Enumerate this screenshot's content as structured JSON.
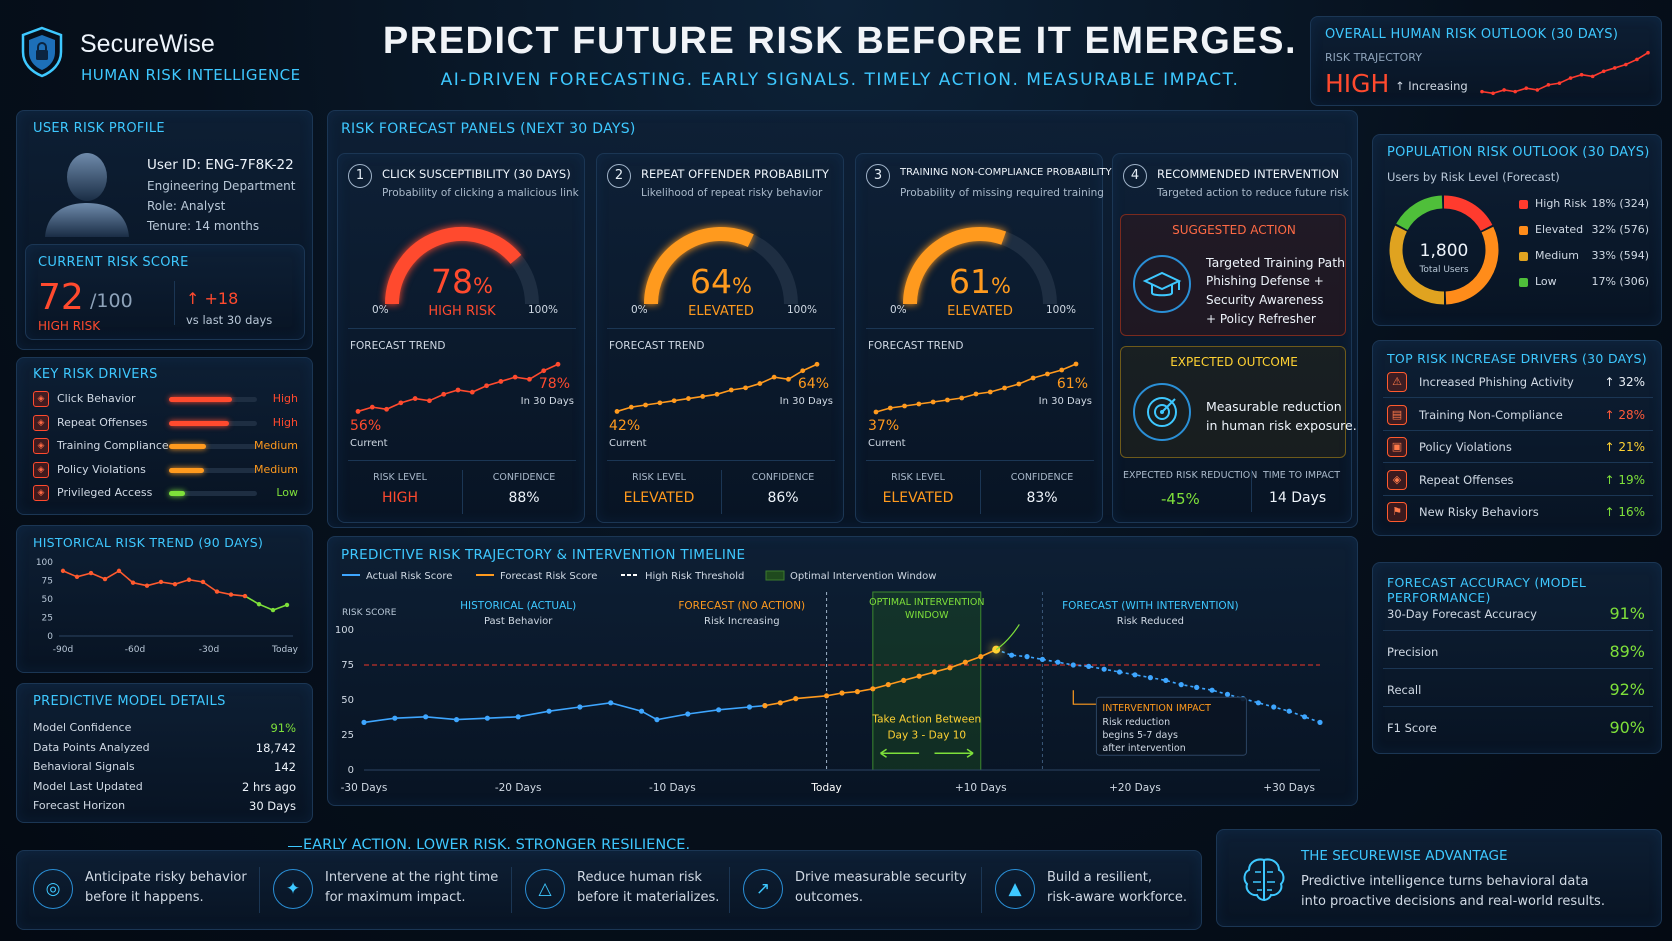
{
  "brand": {
    "name": "SecureWise",
    "tagline": "HUMAN RISK INTELLIGENCE"
  },
  "hero": {
    "headline": "PREDICT FUTURE RISK BEFORE IT EMERGES.",
    "subline": "AI-DRIVEN FORECASTING. EARLY SIGNALS. TIMELY ACTION. MEASURABLE IMPACT."
  },
  "outlook": {
    "title": "OVERALL HUMAN RISK OUTLOOK (30 DAYS)",
    "trajectory_label": "RISK TRAJECTORY",
    "level": "HIGH",
    "trend": "↑ Increasing",
    "spark": [
      12,
      11,
      13,
      12,
      14,
      13,
      16,
      17,
      20,
      22,
      21,
      24,
      26,
      28,
      31,
      35
    ]
  },
  "profile": {
    "title": "USER RISK PROFILE",
    "user_id": "User ID: ENG-7F8K-22",
    "department": "Engineering Department",
    "role": "Role: Analyst",
    "tenure": "Tenure: 14 months"
  },
  "current_score": {
    "title": "CURRENT RISK SCORE",
    "score": "72",
    "max": "/100",
    "level": "HIGH RISK",
    "delta": "↑ +18",
    "delta_note": "vs last 30 days"
  },
  "drivers": {
    "title": "KEY RISK DRIVERS",
    "items": [
      {
        "label": "Click Behavior",
        "level": "High",
        "value": 0.72,
        "color": "#ff4a2e"
      },
      {
        "label": "Repeat Offenses",
        "level": "High",
        "value": 0.68,
        "color": "#ff4a2e"
      },
      {
        "label": "Training Compliance",
        "level": "Medium",
        "value": 0.42,
        "color": "#ff9a1e"
      },
      {
        "label": "Policy Violations",
        "level": "Medium",
        "value": 0.4,
        "color": "#ff9a1e"
      },
      {
        "label": "Privileged Access",
        "level": "Low",
        "value": 0.18,
        "color": "#7ee03a"
      }
    ]
  },
  "history": {
    "title": "HISTORICAL RISK TREND (90 DAYS)",
    "yticks": [
      "100",
      "75",
      "50",
      "25",
      "0"
    ],
    "xticks": [
      "-90d",
      "-60d",
      "-30d",
      "Today"
    ],
    "values": [
      88,
      80,
      85,
      77,
      88,
      72,
      68,
      73,
      70,
      76,
      73,
      60,
      56,
      54,
      43,
      35,
      42
    ]
  },
  "model": {
    "title": "PREDICTIVE MODEL DETAILS",
    "rows": [
      {
        "label": "Model Confidence",
        "value": "91%"
      },
      {
        "label": "Data Points Analyzed",
        "value": "18,742"
      },
      {
        "label": "Behavioral Signals",
        "value": "142"
      },
      {
        "label": "Model Last Updated",
        "value": "2 hrs ago"
      },
      {
        "label": "Forecast Horizon",
        "value": "30 Days"
      }
    ]
  },
  "forecast": {
    "title": "RISK FORECAST PANELS (NEXT 30 DAYS)",
    "panels": [
      {
        "num": "1",
        "title": "CLICK SUSCEPTIBILITY (30 DAYS)",
        "sub": "Probability of clicking a malicious link",
        "pct": "78",
        "pct_sign": "%",
        "level": "HIGH RISK",
        "min": "0%",
        "max": "100%",
        "gauge": 0.78,
        "color": "#ff4a2e",
        "trend_label": "FORECAST TREND",
        "start": "56%",
        "start_note": "Current",
        "end": "78%",
        "end_note": "In 30 Days",
        "trend": [
          56,
          58,
          57,
          60,
          62,
          61,
          64,
          66,
          65,
          68,
          70,
          72,
          71,
          75,
          78
        ],
        "risk_level_label": "RISK LEVEL",
        "risk_level": "HIGH",
        "confidence_label": "CONFIDENCE",
        "confidence": "88%"
      },
      {
        "num": "2",
        "title": "REPEAT OFFENDER PROBABILITY",
        "sub": "Likelihood of repeat risky behavior",
        "pct": "64",
        "pct_sign": "%",
        "level": "ELEVATED",
        "min": "0%",
        "max": "100%",
        "gauge": 0.64,
        "color": "#ff9a1e",
        "trend_label": "FORECAST TREND",
        "start": "42%",
        "start_note": "Current",
        "end": "64%",
        "end_note": "In 30 Days",
        "trend": [
          42,
          44,
          45,
          46,
          47,
          48,
          49,
          50,
          52,
          53,
          55,
          58,
          57,
          61,
          64
        ],
        "risk_level_label": "RISK LEVEL",
        "risk_level": "ELEVATED",
        "confidence_label": "CONFIDENCE",
        "confidence": "86%"
      },
      {
        "num": "3",
        "title": "TRAINING NON-COMPLIANCE PROBABILITY",
        "sub": "Probability of missing required training",
        "pct": "61",
        "pct_sign": "%",
        "level": "ELEVATED",
        "min": "0%",
        "max": "100%",
        "gauge": 0.61,
        "color": "#ff9a1e",
        "trend_label": "FORECAST TREND",
        "start": "37%",
        "start_note": "Current",
        "end": "61%",
        "end_note": "In 30 Days",
        "trend": [
          37,
          39,
          40,
          41,
          42,
          43,
          44,
          46,
          47,
          49,
          51,
          54,
          56,
          58,
          61
        ],
        "risk_level_label": "RISK LEVEL",
        "risk_level": "ELEVATED",
        "confidence_label": "CONFIDENCE",
        "confidence": "83%"
      }
    ],
    "intervention": {
      "num": "4",
      "title": "RECOMMENDED INTERVENTION",
      "sub": "Targeted action to reduce future risk",
      "suggested_label": "SUGGESTED ACTION",
      "suggested_lines": [
        "Targeted Training Path",
        "Phishing Defense +",
        "Security Awareness",
        "+ Policy Refresher"
      ],
      "outcome_label": "EXPECTED OUTCOME",
      "outcome_lines": [
        "Measurable reduction",
        "in human risk exposure."
      ],
      "reduction_label": "EXPECTED RISK REDUCTION",
      "reduction": "-45%",
      "time_label": "TIME TO IMPACT",
      "time": "14 Days"
    }
  },
  "timeline": {
    "title": "PREDICTIVE RISK TRAJECTORY & INTERVENTION TIMELINE",
    "legend": [
      "Actual Risk Score",
      "Forecast Risk Score",
      "High Risk Threshold",
      "Optimal Intervention Window"
    ],
    "ylabel": "RISK SCORE",
    "yticks": [
      "100",
      "75",
      "50",
      "25",
      "0"
    ],
    "xticks": [
      "-30 Days",
      "-20 Days",
      "-10 Days",
      "Today",
      "+10 Days",
      "+20 Days",
      "+30 Days"
    ],
    "threshold": 75,
    "sections": [
      {
        "title": "HISTORICAL (ACTUAL)",
        "sub": "Past Behavior"
      },
      {
        "title": "FORECAST (NO ACTION)",
        "sub": "Risk Increasing"
      },
      {
        "title": "OPTIMAL INTERVENTION WINDOW",
        "sub": ""
      },
      {
        "title": "FORECAST (WITH INTERVENTION)",
        "sub": "Risk Reduced"
      }
    ],
    "window_text": [
      "Take Action Between",
      "Day 3 - Day 10"
    ],
    "impact_title": "INTERVENTION IMPACT",
    "impact_lines": [
      "Risk reduction",
      "begins 5-7 days",
      "after intervention"
    ],
    "actual": [
      [
        -30,
        34
      ],
      [
        -28,
        37
      ],
      [
        -26,
        38
      ],
      [
        -24,
        36
      ],
      [
        -22,
        37
      ],
      [
        -20,
        38
      ],
      [
        -18,
        42
      ],
      [
        -16,
        45
      ],
      [
        -14,
        48
      ],
      [
        -12,
        42
      ],
      [
        -11,
        36
      ],
      [
        -9,
        40
      ],
      [
        -7,
        43
      ],
      [
        -5,
        45
      ],
      [
        -4,
        46
      ]
    ],
    "forecast": [
      [
        -4,
        46
      ],
      [
        -3,
        48
      ],
      [
        -2,
        51
      ],
      [
        0,
        53
      ],
      [
        1,
        55
      ],
      [
        2,
        56
      ],
      [
        3,
        58
      ],
      [
        4,
        61
      ],
      [
        5,
        64
      ],
      [
        6,
        67
      ],
      [
        7,
        70
      ],
      [
        8,
        73
      ],
      [
        9,
        77
      ],
      [
        10,
        81
      ],
      [
        11,
        86
      ]
    ],
    "intervention": [
      [
        11,
        86
      ],
      [
        12,
        82
      ],
      [
        13,
        81
      ],
      [
        14,
        79
      ],
      [
        15,
        77
      ],
      [
        16,
        75
      ],
      [
        17,
        74
      ],
      [
        18,
        72
      ],
      [
        19,
        70
      ],
      [
        20,
        68
      ],
      [
        21,
        66
      ],
      [
        22,
        64
      ],
      [
        23,
        61
      ],
      [
        24,
        59
      ],
      [
        25,
        57
      ],
      [
        26,
        54
      ],
      [
        27,
        51
      ],
      [
        28,
        48
      ],
      [
        29,
        45
      ],
      [
        30,
        42
      ],
      [
        31,
        38
      ],
      [
        32,
        34
      ]
    ]
  },
  "population": {
    "title": "POPULATION RISK OUTLOOK (30 DAYS)",
    "sub": "Users by Risk Level (Forecast)",
    "total": "1,800",
    "total_label": "Total Users",
    "segments": [
      {
        "label": "High Risk",
        "value": "18% (324)",
        "pct": 18,
        "color": "#ff3b2e"
      },
      {
        "label": "Elevated",
        "value": "32% (576)",
        "pct": 32,
        "color": "#ff8c1a"
      },
      {
        "label": "Medium",
        "value": "33% (594)",
        "pct": 33,
        "color": "#e0a320"
      },
      {
        "label": "Low",
        "value": "17% (306)",
        "pct": 17,
        "color": "#4fbf3a"
      }
    ]
  },
  "top_drivers": {
    "title": "TOP RISK INCREASE DRIVERS (30 DAYS)",
    "items": [
      {
        "label": "Increased Phishing Activity",
        "value": "↑ 32%",
        "color": "#e8eef5"
      },
      {
        "label": "Training Non-Compliance",
        "value": "↑ 28%",
        "color": "#ff5a3a"
      },
      {
        "label": "Policy Violations",
        "value": "↑ 21%",
        "color": "#ffd233"
      },
      {
        "label": "Repeat Offenses",
        "value": "↑ 19%",
        "color": "#7ee03a"
      },
      {
        "label": "New Risky Behaviors",
        "value": "↑ 16%",
        "color": "#7ee03a"
      }
    ]
  },
  "accuracy": {
    "title": "FORECAST ACCURACY (MODEL PERFORMANCE)",
    "rows": [
      {
        "label": "30-Day Forecast Accuracy",
        "value": "91%"
      },
      {
        "label": "Precision",
        "value": "89%"
      },
      {
        "label": "Recall",
        "value": "92%"
      },
      {
        "label": "F1 Score",
        "value": "90%"
      }
    ]
  },
  "footer": {
    "slogan": "EARLY ACTION. LOWER RISK. STRONGER RESILIENCE.",
    "items": [
      {
        "l1": "Anticipate risky behavior",
        "l2": "before it happens."
      },
      {
        "l1": "Intervene at the right time",
        "l2": "for maximum impact."
      },
      {
        "l1": "Reduce human risk",
        "l2": "before it materializes."
      },
      {
        "l1": "Drive measurable security",
        "l2": "outcomes."
      },
      {
        "l1": "Build a resilient,",
        "l2": "risk-aware workforce."
      }
    ],
    "advantage_title": "THE SECUREWISE ADVANTAGE",
    "advantage_l1": "Predictive intelligence turns behavioral data",
    "advantage_l2": "into proactive decisions and real-world results."
  }
}
